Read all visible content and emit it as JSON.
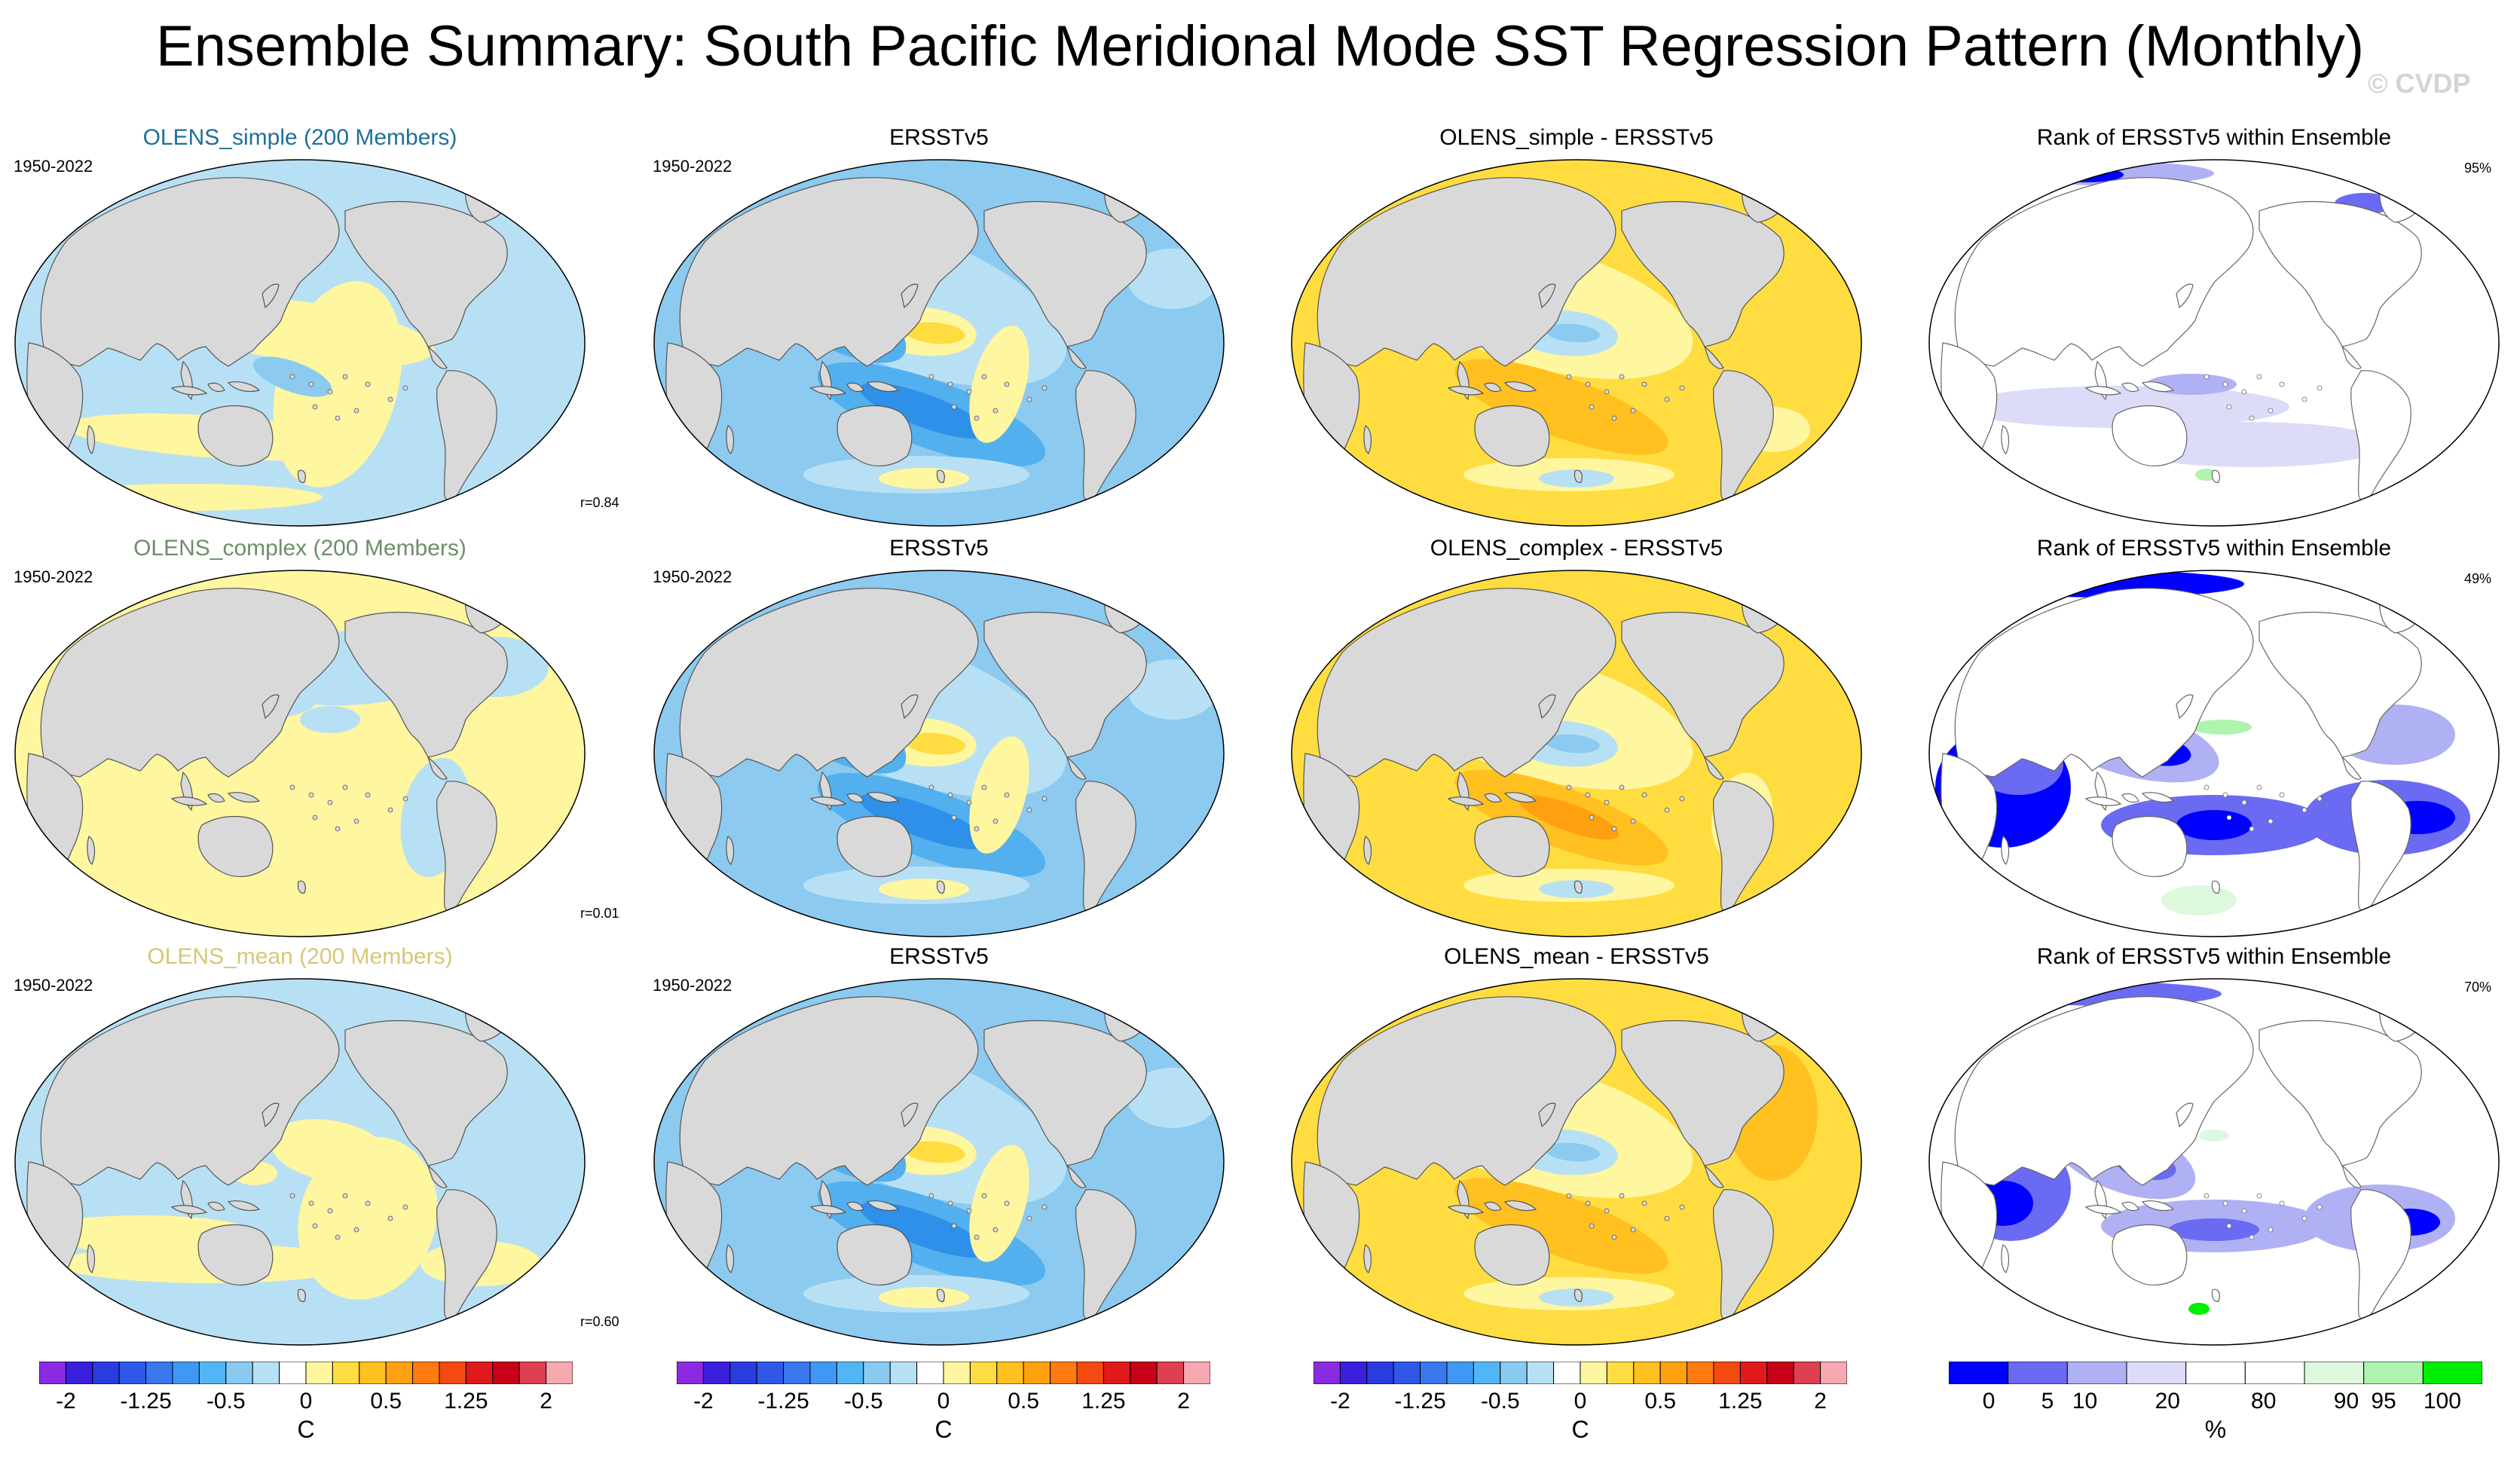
{
  "title": "Ensemble Summary: South Pacific Meridional Mode SST Regression Pattern (Monthly)",
  "watermark": "© CVDP",
  "colors": {
    "land": "#d9d9d9",
    "simple_title": "#1f6f9a",
    "complex_title": "#6d8f68",
    "mean_title": "#d6c874"
  },
  "rows": [
    {
      "model_title": "OLENS_simple (200 Members)",
      "period": "1950-2022",
      "corr": "r=0.84",
      "obs_title": "ERSSTv5",
      "obs_period": "1950-2022",
      "diff_title": "OLENS_simple - ERSSTv5",
      "rank_title": "Rank of ERSSTv5 within Ensemble",
      "rank_pct": "95%"
    },
    {
      "model_title": "OLENS_complex (200 Members)",
      "period": "1950-2022",
      "corr": "r=0.01",
      "obs_title": "ERSSTv5",
      "obs_period": "1950-2022",
      "diff_title": "OLENS_complex - ERSSTv5",
      "rank_title": "Rank of ERSSTv5 within Ensemble",
      "rank_pct": "49%"
    },
    {
      "model_title": "OLENS_mean (200 Members)",
      "period": "1950-2022",
      "corr": "r=0.60",
      "obs_title": "ERSSTv5",
      "obs_period": "1950-2022",
      "diff_title": "OLENS_mean - ERSSTv5",
      "rank_title": "Rank of ERSSTv5 within Ensemble",
      "rank_pct": "70%"
    }
  ],
  "sst_colorbar": {
    "unit": "C",
    "labels": [
      "-2",
      "-1.25",
      "-0.5",
      "0",
      "0.5",
      "1.25",
      "2"
    ],
    "colors": [
      "#8a2be2",
      "#3a1fdc",
      "#2a3be0",
      "#2f58e8",
      "#3a78f0",
      "#3f98f4",
      "#52b6f6",
      "#89cbf0",
      "#b6e0f4",
      "#ffffff",
      "#fff6a0",
      "#ffdd40",
      "#ffc020",
      "#ffa010",
      "#ff7a10",
      "#f44a12",
      "#e01a1a",
      "#c80018",
      "#de4050",
      "#f6a8b0"
    ]
  },
  "rank_colorbar": {
    "unit": "%",
    "labels": [
      "0",
      "5",
      "10",
      "20",
      "80",
      "90",
      "95",
      "100"
    ],
    "colors": [
      "#0000ff",
      "#6a6af2",
      "#b0b0f4",
      "#dcdcf8",
      "#ffffff",
      "#ffffff",
      "#ddf8dd",
      "#aef4ae",
      "#00ee00"
    ]
  }
}
